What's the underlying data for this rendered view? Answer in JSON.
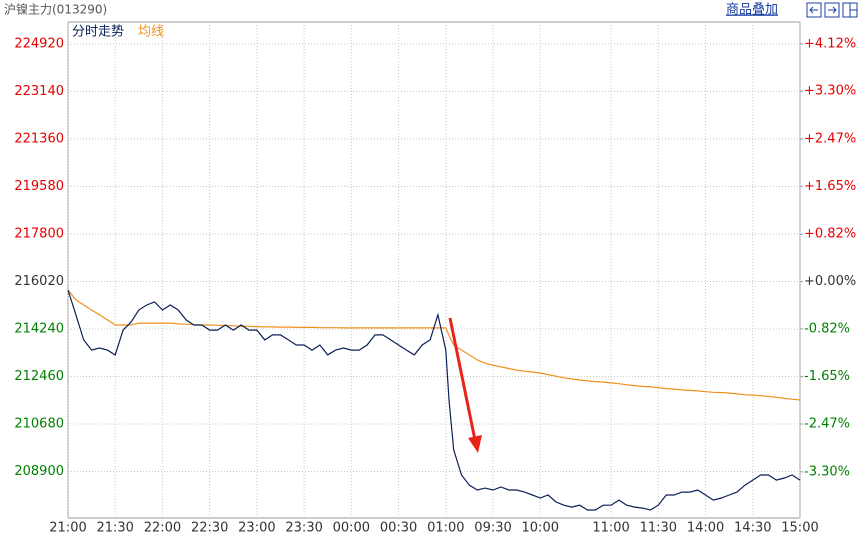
{
  "chart_data": {
    "type": "line",
    "title": "沪镍主力(013290)",
    "overlay_link": "商品叠加",
    "xlim": [
      0,
      465
    ],
    "xticks": [
      {
        "value": 0,
        "label": "21:00"
      },
      {
        "value": 30,
        "label": "21:30"
      },
      {
        "value": 60,
        "label": "22:00"
      },
      {
        "value": 90,
        "label": "22:30"
      },
      {
        "value": 120,
        "label": "23:00"
      },
      {
        "value": 150,
        "label": "23:30"
      },
      {
        "value": 180,
        "label": "00:00"
      },
      {
        "value": 210,
        "label": "00:30"
      },
      {
        "value": 240,
        "label": "01:00"
      },
      {
        "value": 270,
        "label": "09:30"
      },
      {
        "value": 300,
        "label": "10:00"
      },
      {
        "value": 345,
        "label": "11:00"
      },
      {
        "value": 375,
        "label": "11:30"
      },
      {
        "value": 405,
        "label": "14:00"
      },
      {
        "value": 435,
        "label": "14:30"
      },
      {
        "value": 465,
        "label": "15:00"
      }
    ],
    "ylim": [
      207160,
      225740
    ],
    "yticks": [
      224920,
      223140,
      221360,
      219580,
      217800,
      216020,
      214240,
      212460,
      210680,
      208900
    ],
    "y2lim": [
      -4.1,
      4.5
    ],
    "y2ticks": [
      {
        "value": 4.12,
        "label": "+4.12%"
      },
      {
        "value": 3.3,
        "label": "+3.30%"
      },
      {
        "value": 2.47,
        "label": "+2.47%"
      },
      {
        "value": 1.65,
        "label": "+1.65%"
      },
      {
        "value": 0.82,
        "label": "+0.82%"
      },
      {
        "value": 0.0,
        "label": "+0.00%"
      },
      {
        "value": -0.82,
        "label": "-0.82%"
      },
      {
        "value": -1.65,
        "label": "-1.65%"
      },
      {
        "value": -2.47,
        "label": "-2.47%"
      },
      {
        "value": -3.3,
        "label": "-3.30%"
      }
    ],
    "grid": true,
    "x": [
      0,
      5,
      10,
      15,
      20,
      25,
      30,
      35,
      40,
      45,
      50,
      55,
      60,
      65,
      70,
      75,
      80,
      85,
      90,
      95,
      100,
      105,
      110,
      115,
      120,
      125,
      130,
      135,
      140,
      145,
      150,
      155,
      160,
      165,
      170,
      175,
      180,
      185,
      190,
      195,
      200,
      205,
      210,
      215,
      220,
      225,
      230,
      235,
      240,
      242,
      245,
      250,
      255,
      260,
      265,
      270,
      275,
      280,
      285,
      290,
      295,
      300,
      305,
      310,
      315,
      320,
      325,
      330,
      335,
      340,
      345,
      350,
      355,
      360,
      365,
      370,
      375,
      380,
      385,
      390,
      395,
      400,
      405,
      410,
      415,
      420,
      425,
      430,
      435,
      440,
      445,
      450,
      455,
      460,
      465
    ],
    "series": [
      {
        "name": "分时走势",
        "color": "#0b1f5a",
        "values": [
          215700,
          214770,
          213830,
          213450,
          213530,
          213450,
          213270,
          214200,
          214500,
          214950,
          215140,
          215250,
          214950,
          215140,
          214950,
          214580,
          214390,
          214390,
          214200,
          214200,
          214390,
          214200,
          214390,
          214200,
          214200,
          213830,
          214020,
          214020,
          213830,
          213640,
          213640,
          213450,
          213640,
          213270,
          213450,
          213530,
          213450,
          213450,
          213640,
          214020,
          214020,
          213830,
          213640,
          213450,
          213270,
          213640,
          213830,
          214770,
          213450,
          211580,
          209710,
          208770,
          208390,
          208210,
          208280,
          208210,
          208320,
          208210,
          208210,
          208130,
          208020,
          207910,
          208020,
          207760,
          207640,
          207570,
          207640,
          207460,
          207460,
          207640,
          207640,
          207830,
          207640,
          207570,
          207530,
          207460,
          207640,
          208020,
          208020,
          208130,
          208130,
          208210,
          208020,
          207830,
          207910,
          208020,
          208130,
          208390,
          208580,
          208770,
          208770,
          208580,
          208660,
          208770,
          208580
        ]
      },
      {
        "name": "均线",
        "color": "#f0901e",
        "values": [
          215700,
          215330,
          215140,
          214950,
          214770,
          214580,
          214390,
          214390,
          214390,
          214460,
          214460,
          214460,
          214460,
          214460,
          214430,
          214420,
          214400,
          214390,
          214390,
          214380,
          214370,
          214360,
          214350,
          214340,
          214330,
          214320,
          214320,
          214310,
          214310,
          214300,
          214300,
          214300,
          214290,
          214290,
          214290,
          214280,
          214280,
          214280,
          214280,
          214280,
          214280,
          214280,
          214280,
          214280,
          214280,
          214280,
          214280,
          214280,
          214280,
          214000,
          213640,
          213450,
          213270,
          213080,
          212960,
          212880,
          212820,
          212760,
          212700,
          212660,
          212630,
          212590,
          212530,
          212470,
          212410,
          212370,
          212330,
          212300,
          212270,
          212250,
          212220,
          212190,
          212150,
          212120,
          212090,
          212070,
          212040,
          212010,
          211990,
          211960,
          211940,
          211920,
          211890,
          211870,
          211860,
          211840,
          211810,
          211780,
          211760,
          211740,
          211710,
          211680,
          211640,
          211610,
          211580
        ]
      }
    ]
  }
}
